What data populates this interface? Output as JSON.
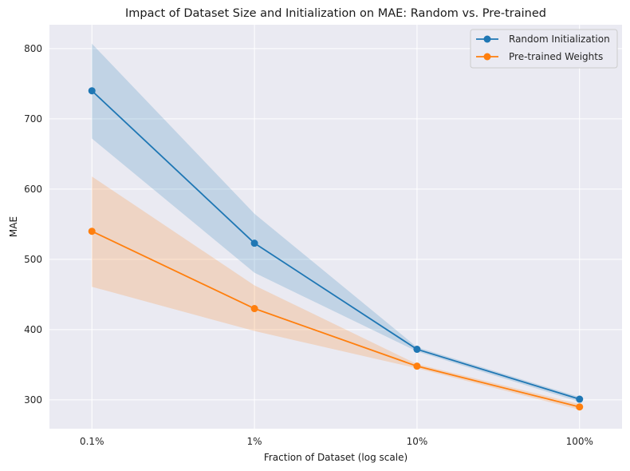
{
  "chart_data": {
    "type": "line",
    "title": "Impact of Dataset Size and Initialization on MAE: Random vs. Pre-trained",
    "xlabel": "Fraction of Dataset (log scale)",
    "ylabel": "MAE",
    "x_scale": "log",
    "x": [
      0.1,
      1,
      10,
      100
    ],
    "categories": [
      "0.1%",
      "1%",
      "10%",
      "100%"
    ],
    "xlim": [
      0.0548,
      182.5
    ],
    "ylim": [
      259,
      834
    ],
    "yticks": [
      300,
      400,
      500,
      600,
      700,
      800
    ],
    "grid": true,
    "legend_position": "top-right",
    "series": [
      {
        "name": "Random Initialization",
        "color": "#1f77b4",
        "values": [
          740,
          523,
          372,
          301
        ],
        "band_lower": [
          672,
          481,
          369,
          297
        ],
        "band_upper": [
          807,
          565,
          375,
          304
        ]
      },
      {
        "name": "Pre-trained Weights",
        "color": "#ff7f0e",
        "values": [
          540,
          430,
          348,
          290
        ],
        "band_lower": [
          461,
          398,
          345,
          286
        ],
        "band_upper": [
          618,
          463,
          351,
          294
        ]
      }
    ]
  }
}
